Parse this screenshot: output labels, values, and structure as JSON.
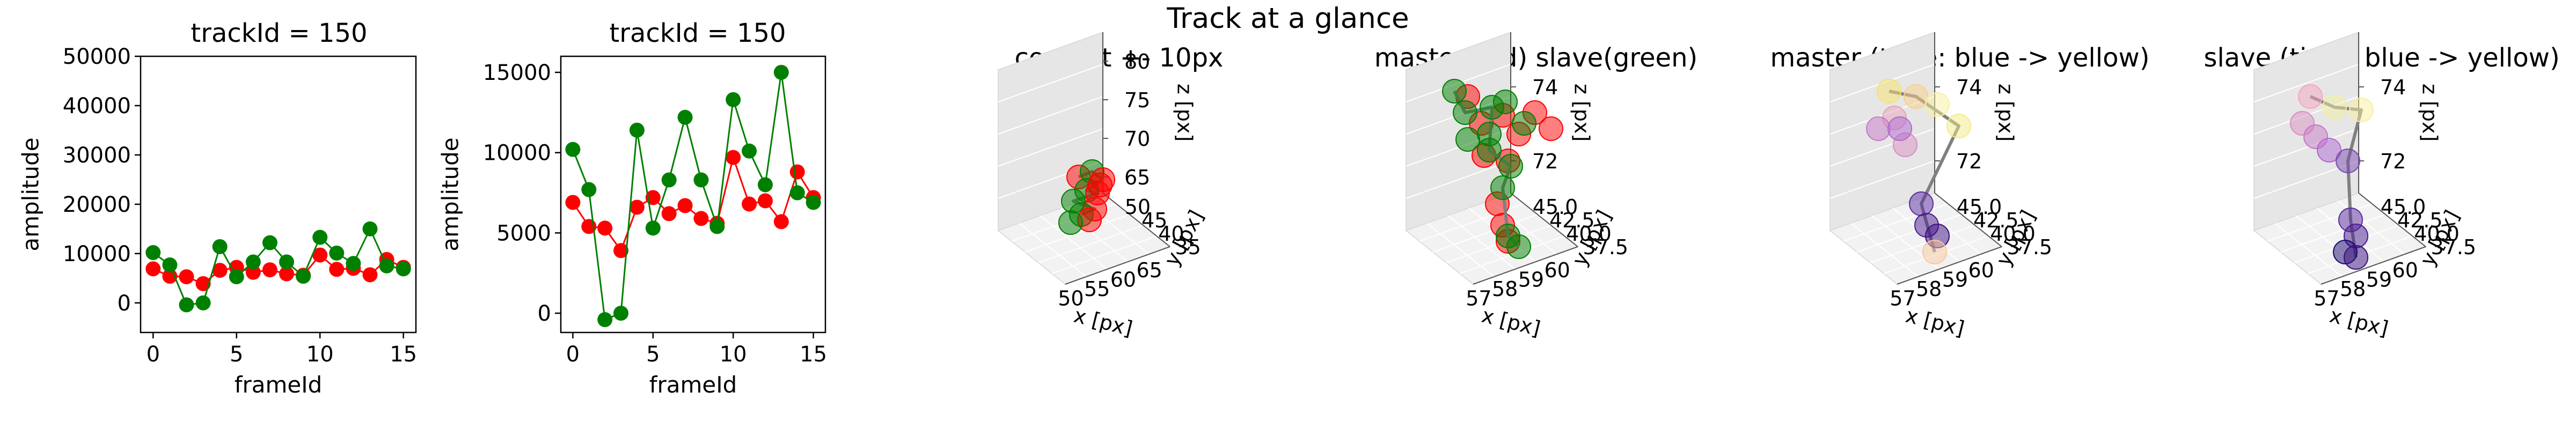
{
  "figure": {
    "suptitle": "Track at a glance"
  },
  "colors": {
    "master": "#ff0000",
    "slave": "#008000",
    "pane": "#f2f2f2",
    "track": "#808080"
  },
  "chart_data": [
    {
      "type": "line",
      "title": "trackId = 150",
      "xlabel": "frameId",
      "ylabel": "amplitude",
      "xlim": [
        -0.75,
        15.75
      ],
      "ylim": [
        -6000,
        50000
      ],
      "xticks": [
        "0",
        "5",
        "10",
        "15"
      ],
      "yticks": [
        "0",
        "10000",
        "20000",
        "30000",
        "40000",
        "50000"
      ],
      "x": [
        0,
        1,
        2,
        3,
        4,
        5,
        6,
        7,
        8,
        9,
        10,
        11,
        12,
        13,
        14,
        15
      ],
      "series": [
        {
          "color": "red",
          "values": [
            6900,
            5400,
            5300,
            3900,
            6600,
            7200,
            6200,
            6700,
            5900,
            5600,
            9700,
            6800,
            7000,
            5700,
            8800,
            7200
          ]
        },
        {
          "color": "green",
          "values": [
            10200,
            7700,
            -400,
            0,
            11400,
            5300,
            8300,
            12200,
            8300,
            5400,
            13300,
            10100,
            8000,
            15000,
            7500,
            6900
          ]
        }
      ]
    },
    {
      "type": "line",
      "title": "trackId = 150",
      "xlabel": "frameId",
      "ylabel": "amplitude",
      "xlim": [
        -0.75,
        15.75
      ],
      "ylim": [
        -1200,
        16000
      ],
      "xticks": [
        "0",
        "5",
        "10",
        "15"
      ],
      "yticks": [
        "0",
        "5000",
        "10000",
        "15000"
      ],
      "x": [
        0,
        1,
        2,
        3,
        4,
        5,
        6,
        7,
        8,
        9,
        10,
        11,
        12,
        13,
        14,
        15
      ],
      "series": [
        {
          "color": "red",
          "values": [
            6900,
            5400,
            5300,
            3900,
            6600,
            7200,
            6200,
            6700,
            5900,
            5600,
            9700,
            6800,
            7000,
            5700,
            8800,
            7200
          ]
        },
        {
          "color": "green",
          "values": [
            10200,
            7700,
            -400,
            0,
            11400,
            5300,
            8300,
            12200,
            8300,
            5400,
            13300,
            10100,
            8000,
            15000,
            7500,
            6900
          ]
        }
      ]
    },
    {
      "type": "scatter",
      "title": "context +- 10px",
      "xlabel": "x [px]",
      "ylabel": "y [px]",
      "zlabel": "z [px]",
      "xticks": [
        "50",
        "55",
        "60",
        "65"
      ],
      "yticks": [
        "35",
        "40",
        "45",
        "50"
      ],
      "zticks": [
        "65",
        "70",
        "75",
        "80"
      ]
    },
    {
      "type": "scatter",
      "title": "master(red) slave(green)",
      "xlabel": "x [px]",
      "ylabel": "y [px]",
      "zlabel": "z [px]",
      "xticks": [
        "57",
        "58",
        "59",
        "60"
      ],
      "yticks": [
        "37.5",
        "40.0",
        "42.5",
        "45.0"
      ],
      "zticks": [
        "72",
        "74"
      ]
    },
    {
      "type": "scatter",
      "title": "master (time: blue -> yellow)",
      "xlabel": "x [px]",
      "ylabel": "y [px]",
      "zlabel": "z [px]",
      "xticks": [
        "57",
        "58",
        "59",
        "60"
      ],
      "yticks": [
        "37.5",
        "40.0",
        "42.5",
        "45.0"
      ],
      "zticks": [
        "72",
        "74"
      ]
    },
    {
      "type": "scatter",
      "title": "slave (time: blue -> yellow)",
      "xlabel": "x [px]",
      "ylabel": "y [px]",
      "zlabel": "z [px]",
      "xticks": [
        "57",
        "58",
        "59",
        "60"
      ],
      "yticks": [
        "37.5",
        "40.0",
        "42.5",
        "45.0"
      ],
      "zticks": [
        "72",
        "74"
      ]
    }
  ]
}
